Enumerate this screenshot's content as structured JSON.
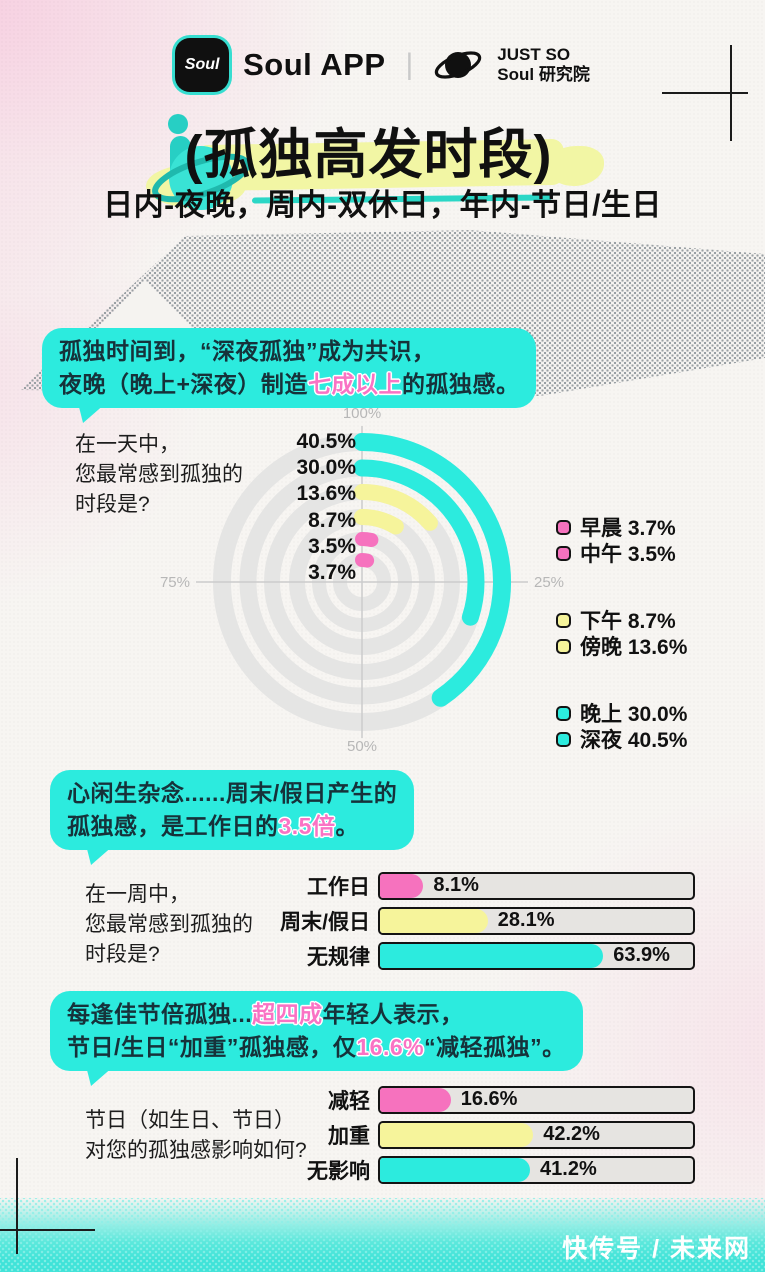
{
  "header": {
    "app_icon_text": "Soul",
    "app_name": "Soul APP",
    "divider": "|",
    "lab_line1": "JUST SO",
    "lab_line2": "Soul 研究院"
  },
  "title": {
    "main": "(孤独高发时段)",
    "subtitle": "日内-夜晚，周内-双休日，年内-节日/生日"
  },
  "callouts": [
    {
      "lines": [
        [
          {
            "t": "孤独时间到，“深夜孤独”成为共识，"
          }
        ],
        [
          {
            "t": "夜晚（晚上+深夜）制造"
          },
          {
            "t": "七成以上",
            "hl": true
          },
          {
            "t": "的孤独感。"
          }
        ]
      ]
    },
    {
      "lines": [
        [
          {
            "t": "心闲生杂念......周末/假日产生的"
          }
        ],
        [
          {
            "t": "孤独感，是工作日的"
          },
          {
            "t": "3.5倍",
            "hl": true
          },
          {
            "t": "。"
          }
        ]
      ]
    },
    {
      "lines": [
        [
          {
            "t": "每逢佳节倍孤独..."
          },
          {
            "t": "超四成",
            "hl": true
          },
          {
            "t": "年轻人表示，"
          }
        ],
        [
          {
            "t": "节日/生日“加重”孤独感，仅"
          },
          {
            "t": "16.6%",
            "hl": true
          },
          {
            "t": "“减轻孤独”。"
          }
        ]
      ]
    }
  ],
  "colors": {
    "cyan": "#2cebde",
    "yellow": "#f6f49b",
    "pink": "#f672be",
    "track": "#e6e4e1",
    "ink": "#141414"
  },
  "chart_data": [
    {
      "type": "radial-bar",
      "question_lines": [
        "在一天中，",
        "您最常感到孤独的",
        "时段是?"
      ],
      "angular_ticks": {
        "top": "100%",
        "right": "25%",
        "bottom": "50%",
        "left": "75%"
      },
      "series": [
        {
          "label": "深夜",
          "value": 40.5,
          "display": "40.5%",
          "color": "#2cebde"
        },
        {
          "label": "晚上",
          "value": 30.0,
          "display": "30.0%",
          "color": "#2cebde"
        },
        {
          "label": "傍晚",
          "value": 13.6,
          "display": "13.6%",
          "color": "#f6f49b"
        },
        {
          "label": "下午",
          "value": 8.7,
          "display": "8.7%",
          "color": "#f6f49b"
        },
        {
          "label": "中午",
          "value": 3.5,
          "display": "3.5%",
          "color": "#f672be"
        },
        {
          "label": "早晨",
          "value": 3.7,
          "display": "3.7%",
          "color": "#f672be"
        }
      ],
      "legend_groups": [
        [
          {
            "label": "早晨",
            "display": "3.7%",
            "color": "#f672be"
          },
          {
            "label": "中午",
            "display": "3.5%",
            "color": "#f672be"
          }
        ],
        [
          {
            "label": "下午",
            "display": "8.7%",
            "color": "#f6f49b"
          },
          {
            "label": "傍晚",
            "display": "13.6%",
            "color": "#f6f49b"
          }
        ],
        [
          {
            "label": "晚上",
            "display": "30.0%",
            "color": "#2cebde"
          },
          {
            "label": "深夜",
            "display": "40.5%",
            "color": "#2cebde"
          }
        ]
      ]
    },
    {
      "type": "bar",
      "question_lines": [
        "在一周中，",
        "您最常感到孤独的",
        "时段是?"
      ],
      "bars": [
        {
          "label": "工作日",
          "value": 8.1,
          "display": "8.1%",
          "color": "#f672be"
        },
        {
          "label": "周末/假日",
          "value": 28.1,
          "display": "28.1%",
          "color": "#f6f49b"
        },
        {
          "label": "无规律",
          "value": 63.9,
          "display": "63.9%",
          "color": "#2cebde"
        }
      ]
    },
    {
      "type": "bar",
      "question_lines": [
        "节日（如生日、节日）",
        "对您的孤独感影响如何?"
      ],
      "bars": [
        {
          "label": "减轻",
          "value": 16.6,
          "display": "16.6%",
          "color": "#f672be"
        },
        {
          "label": "加重",
          "value": 42.2,
          "display": "42.2%",
          "color": "#f6f49b"
        },
        {
          "label": "无影响",
          "value": 41.2,
          "display": "41.2%",
          "color": "#2cebde"
        }
      ]
    }
  ],
  "watermark": "快传号 / 未来网"
}
